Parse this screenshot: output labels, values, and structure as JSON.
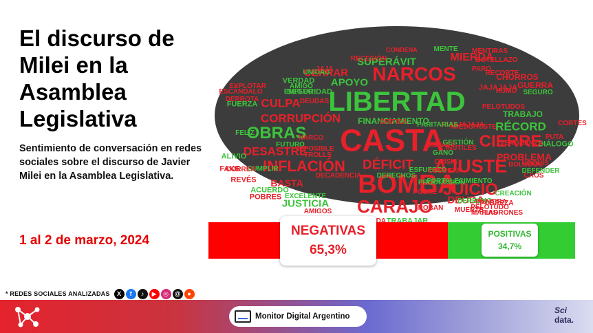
{
  "title": "El discurso de Milei en la Asamblea Legislativa",
  "subtitle": "Sentimiento de conversación en redes sociales sobre el discurso de Javier Milei en la Asamblea Legislativa.",
  "date": "1 al 2 de marzo, 2024",
  "networks": {
    "label": "* REDES SOCIALES ANALIZADAS",
    "icons": [
      {
        "name": "x",
        "glyph": "X",
        "color": "#000000"
      },
      {
        "name": "facebook",
        "glyph": "f",
        "color": "#1877f2"
      },
      {
        "name": "tiktok",
        "glyph": "♪",
        "color": "#111111"
      },
      {
        "name": "youtube",
        "glyph": "▶",
        "color": "#ff0000"
      },
      {
        "name": "instagram",
        "glyph": "◎",
        "color": "#d62976"
      },
      {
        "name": "threads",
        "glyph": "@",
        "color": "#111111"
      },
      {
        "name": "reddit",
        "glyph": "●",
        "color": "#ff4500"
      }
    ]
  },
  "wordcloud": [
    {
      "t": "LIBERTAD",
      "c": "green"
    },
    {
      "t": "CASTA",
      "c": "red"
    },
    {
      "t": "BOMBA",
      "c": "red"
    },
    {
      "t": "NARCOS",
      "c": "red"
    },
    {
      "t": "CARAJO",
      "c": "red"
    },
    {
      "t": "AJUSTE",
      "c": "red"
    },
    {
      "t": "INFLACIÓN",
      "c": "red"
    },
    {
      "t": "CIERRE",
      "c": "red"
    },
    {
      "t": "OBRAS",
      "c": "green"
    },
    {
      "t": "JUICIO",
      "c": "red"
    },
    {
      "t": "RÉCORD",
      "c": "green"
    },
    {
      "t": "CORRUPCIÓN",
      "c": "red"
    },
    {
      "t": "DÉFICIT",
      "c": "red"
    },
    {
      "t": "DESASTRE",
      "c": "red"
    },
    {
      "t": "CULPA",
      "c": "red"
    },
    {
      "t": "APOYO",
      "c": "green"
    },
    {
      "t": "MIERDA",
      "c": "red"
    },
    {
      "t": "CERRAR",
      "c": "red"
    },
    {
      "t": "SUPERÁVIT",
      "c": "green"
    },
    {
      "t": "JUSTICIA",
      "c": "green"
    },
    {
      "t": "FINANCIAMIENTO",
      "c": "green"
    },
    {
      "t": "DEUDA",
      "c": "red"
    },
    {
      "t": "BASTA",
      "c": "red"
    },
    {
      "t": "PROBLEMA",
      "c": "red"
    },
    {
      "t": "FORTALECIMIENTO",
      "c": "green"
    },
    {
      "t": "CONDENA",
      "c": "red"
    },
    {
      "t": "TRABAJO",
      "c": "green"
    },
    {
      "t": "SEGURIDAD",
      "c": "green"
    },
    {
      "t": "ALIVIO",
      "c": "green"
    },
    {
      "t": "FUERZA",
      "c": "green"
    },
    {
      "t": "ACUERDO",
      "c": "green"
    },
    {
      "t": "VERDAD",
      "c": "green"
    },
    {
      "t": "EXPLOTAR",
      "c": "red"
    },
    {
      "t": "ESCÁNDALO",
      "c": "red"
    },
    {
      "t": "FAKE",
      "c": "red"
    },
    {
      "t": "REVÉS",
      "c": "red"
    },
    {
      "t": "POBRES",
      "c": "red"
    },
    {
      "t": "AMIGOS",
      "c": "red"
    },
    {
      "t": "TRABAJAR",
      "c": "green"
    },
    {
      "t": "AFECTADA",
      "c": "red"
    },
    {
      "t": "GUERRA",
      "c": "red"
    },
    {
      "t": "CHORROS",
      "c": "red"
    },
    {
      "t": "JAJAJAJA",
      "c": "red"
    },
    {
      "t": "DIÁLOGO",
      "c": "green"
    },
    {
      "t": "NOQUIS",
      "c": "red"
    },
    {
      "t": "BOLUDOS",
      "c": "red"
    },
    {
      "t": "DEFENDER",
      "c": "green"
    },
    {
      "t": "PUTA",
      "c": "red"
    },
    {
      "t": "MENTIRA",
      "c": "red"
    },
    {
      "t": "CREACIÓN",
      "c": "green"
    },
    {
      "t": "POBRE",
      "c": "red"
    },
    {
      "t": "ROBAN",
      "c": "red"
    },
    {
      "t": "GANÓ",
      "c": "green"
    },
    {
      "t": "CRISIS",
      "c": "red"
    },
    {
      "t": "ESTAFA",
      "c": "red"
    },
    {
      "t": "MIEDO",
      "c": "red"
    },
    {
      "t": "TRISTE",
      "c": "red"
    },
    {
      "t": "DERECHOS",
      "c": "green"
    },
    {
      "t": "DECADENCIA",
      "c": "red"
    },
    {
      "t": "ESFUERZO",
      "c": "green"
    },
    {
      "t": "PARO",
      "c": "red"
    },
    {
      "t": "RECORTE",
      "c": "red"
    },
    {
      "t": "AMIGO",
      "c": "green"
    },
    {
      "t": "DERROTA",
      "c": "red"
    },
    {
      "t": "HUMO",
      "c": "red"
    },
    {
      "t": "SEGURO",
      "c": "green"
    },
    {
      "t": "FUTURO",
      "c": "green"
    },
    {
      "t": "NARCO",
      "c": "red"
    },
    {
      "t": "IMPOSIBLE",
      "c": "red"
    },
    {
      "t": "TROLLS",
      "c": "red"
    },
    {
      "t": "DEUDAS",
      "c": "red"
    },
    {
      "t": "FELIZ",
      "c": "green"
    },
    {
      "t": "UNIDAD",
      "c": "green"
    },
    {
      "t": "CORTES",
      "c": "red"
    },
    {
      "t": "MUERTE",
      "c": "red"
    },
    {
      "t": "EXCELENTE",
      "c": "green"
    },
    {
      "t": "EMPLEO",
      "c": "green"
    },
    {
      "t": "MENTIRAS",
      "c": "red"
    },
    {
      "t": "JAJAJAJAJA",
      "c": "red"
    },
    {
      "t": "PELOTUDOS",
      "c": "red"
    },
    {
      "t": "MENTE",
      "c": "green"
    },
    {
      "t": "BOTELLAZO",
      "c": "red"
    },
    {
      "t": "CUMPLIR",
      "c": "green"
    },
    {
      "t": "CORRER",
      "c": "red"
    },
    {
      "t": "JAJA",
      "c": "red"
    },
    {
      "t": "RECESIÓN",
      "c": "red"
    },
    {
      "t": "GESTIÓN",
      "c": "green"
    },
    {
      "t": "INÚTILES",
      "c": "red"
    },
    {
      "t": "CAOS",
      "c": "red"
    },
    {
      "t": "MAFIAS",
      "c": "red"
    },
    {
      "t": "LADRONES",
      "c": "red"
    },
    {
      "t": "DERECHO",
      "c": "green"
    },
    {
      "t": "PELOTUDO",
      "c": "red"
    },
    {
      "t": "OPERETA",
      "c": "red"
    },
    {
      "t": "PRODUCCIÓN",
      "c": "green"
    },
    {
      "t": "PARITARIAS",
      "c": "green"
    },
    {
      "t": "POBREZA",
      "c": "red"
    },
    {
      "t": "VERGÜENZA",
      "c": "red"
    },
    {
      "t": "CRÍTICA",
      "c": "red"
    }
  ],
  "sentiment": {
    "negative": {
      "label": "NEGATIVAS",
      "value": "65,3%",
      "share": 0.653,
      "color": "#ff0000"
    },
    "positive": {
      "label": "POSITIVAS",
      "value": "34,7%",
      "share": 0.347,
      "color": "#33cc33"
    }
  },
  "footer": {
    "brand": "Monitor Digital Argentino",
    "logo_line1": "Sci",
    "logo_line2": "data."
  }
}
